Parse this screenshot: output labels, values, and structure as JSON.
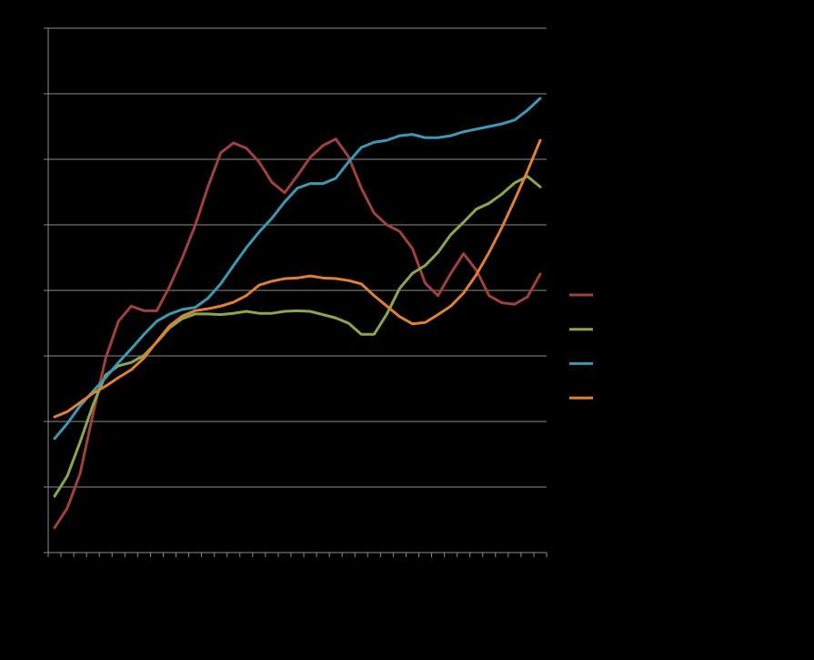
{
  "chart_data": {
    "type": "line",
    "categories": [
      null,
      null,
      null,
      null,
      null,
      null,
      null,
      null,
      null,
      null,
      null,
      null,
      null,
      null,
      null,
      null,
      null,
      null,
      null,
      null,
      null,
      null,
      null,
      null,
      null,
      null,
      null,
      null,
      null,
      null,
      null,
      null,
      null,
      null,
      null,
      null,
      null,
      null,
      null
    ],
    "series": [
      {
        "color": "#a0413e",
        "values": [
          0.38,
          0.68,
          1.21,
          2.11,
          2.97,
          3.53,
          3.76,
          3.69,
          3.69,
          4.06,
          4.5,
          4.99,
          5.58,
          6.1,
          6.25,
          6.17,
          5.96,
          5.65,
          5.49,
          5.75,
          6.03,
          6.21,
          6.31,
          6.04,
          5.56,
          5.18,
          5.0,
          4.9,
          4.64,
          4.11,
          3.92,
          4.26,
          4.56,
          4.31,
          3.92,
          3.81,
          3.79,
          3.9,
          4.25
        ]
      },
      {
        "color": "#8aa84b",
        "values": [
          0.86,
          1.17,
          1.69,
          2.25,
          2.71,
          2.85,
          2.9,
          3.01,
          3.21,
          3.43,
          3.57,
          3.64,
          3.64,
          3.63,
          3.65,
          3.68,
          3.65,
          3.65,
          3.68,
          3.69,
          3.68,
          3.63,
          3.58,
          3.5,
          3.33,
          3.33,
          3.64,
          4.03,
          4.26,
          4.38,
          4.58,
          4.85,
          5.04,
          5.24,
          5.33,
          5.47,
          5.64,
          5.74,
          5.58
        ]
      },
      {
        "color": "#3d98b3",
        "values": [
          1.74,
          1.97,
          2.24,
          2.46,
          2.67,
          2.9,
          3.11,
          3.33,
          3.53,
          3.64,
          3.71,
          3.74,
          3.88,
          4.1,
          4.38,
          4.65,
          4.89,
          5.1,
          5.35,
          5.56,
          5.63,
          5.63,
          5.71,
          5.96,
          6.18,
          6.26,
          6.29,
          6.36,
          6.38,
          6.33,
          6.33,
          6.36,
          6.42,
          6.46,
          6.5,
          6.54,
          6.6,
          6.75,
          6.93
        ]
      },
      {
        "color": "#e07f36",
        "values": [
          2.07,
          2.15,
          2.29,
          2.43,
          2.54,
          2.67,
          2.79,
          2.97,
          3.22,
          3.46,
          3.61,
          3.69,
          3.72,
          3.76,
          3.82,
          3.92,
          4.08,
          4.14,
          4.18,
          4.19,
          4.22,
          4.19,
          4.18,
          4.15,
          4.1,
          3.92,
          3.76,
          3.6,
          3.49,
          3.51,
          3.63,
          3.76,
          3.96,
          4.24,
          4.58,
          4.96,
          5.38,
          5.82,
          6.29
        ]
      }
    ],
    "ylim": [
      0,
      8
    ],
    "yticks": [
      0,
      1,
      2,
      3,
      4,
      5,
      6,
      7,
      8
    ],
    "grid": true
  }
}
